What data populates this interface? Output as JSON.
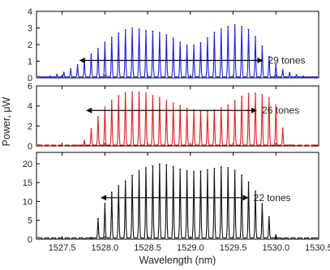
{
  "chart_data": [
    {
      "type": "line",
      "panel": "top",
      "color": "#1f1fe6",
      "ylim": [
        0,
        4
      ],
      "yticks": [
        "0",
        "1",
        "2",
        "3",
        "4"
      ],
      "xlim": [
        1527.2,
        1530.5
      ],
      "tone_spacing_nm": 0.08,
      "x_first_tone": 1527.28,
      "y": [
        0.08,
        0.12,
        0.22,
        0.35,
        0.55,
        0.8,
        1.1,
        1.45,
        1.78,
        2.15,
        2.45,
        2.7,
        2.9,
        3.0,
        2.95,
        2.85,
        2.82,
        2.75,
        2.6,
        2.4,
        2.15,
        1.98,
        1.98,
        2.12,
        2.42,
        2.75,
        2.95,
        3.1,
        3.2,
        3.1,
        2.92,
        2.5,
        1.92,
        1.3,
        0.82,
        0.5,
        0.32,
        0.2,
        0.12,
        0.08
      ],
      "annotation": "29 tones",
      "arrow_range": [
        1527.7,
        1529.85
      ],
      "arrow_level": 1.05
    },
    {
      "type": "line",
      "panel": "middle",
      "color": "#e02020",
      "ylim": [
        0,
        6
      ],
      "yticks": [
        "0",
        "2",
        "4",
        "6"
      ],
      "xlim": [
        1527.2,
        1530.5
      ],
      "tone_spacing_nm": 0.08,
      "x_first_tone": 1527.28,
      "y": [
        0,
        0,
        0,
        0,
        0.05,
        0.12,
        0.55,
        1.75,
        2.95,
        3.9,
        4.6,
        5.05,
        5.35,
        5.42,
        5.4,
        5.3,
        5.05,
        4.85,
        4.55,
        4.3,
        4.05,
        3.8,
        3.62,
        3.52,
        3.52,
        3.62,
        3.82,
        4.1,
        4.55,
        4.98,
        5.25,
        5.3,
        5.15,
        4.85,
        4.1,
        1.8,
        0.15,
        0.04,
        0,
        0
      ],
      "annotation": "26 tones",
      "arrow_range": [
        1527.78,
        1529.78
      ],
      "arrow_level": 3.55
    },
    {
      "type": "line",
      "panel": "bottom",
      "color": "#111111",
      "ylim": [
        0,
        23
      ],
      "yticks": [
        "0",
        "5",
        "10",
        "15",
        "20"
      ],
      "xlim": [
        1527.2,
        1530.5
      ],
      "xticks": [
        "1527.5",
        "1528.0",
        "1528.5",
        "1529.0",
        "1529.5",
        "1530.0",
        "1530.5"
      ],
      "xlabel": "Wavelength (nm)",
      "ylabel": "Power, μW",
      "tone_spacing_nm": 0.08,
      "x_first_tone": 1527.28,
      "y": [
        0,
        0,
        0,
        0,
        0,
        0,
        0.1,
        0.6,
        5.5,
        9.5,
        12.5,
        14.2,
        15.5,
        17.0,
        18.2,
        19.0,
        19.5,
        20.0,
        19.8,
        19.3,
        18.6,
        18.2,
        18.0,
        18.1,
        18.5,
        18.8,
        19.2,
        19.0,
        18.3,
        17.0,
        15.2,
        12.8,
        9.5,
        6.0,
        1.2,
        0.2,
        0,
        0,
        0,
        0
      ],
      "annotation": "22 tones",
      "arrow_range": [
        1527.95,
        1529.68
      ],
      "arrow_level": 11.0
    }
  ]
}
